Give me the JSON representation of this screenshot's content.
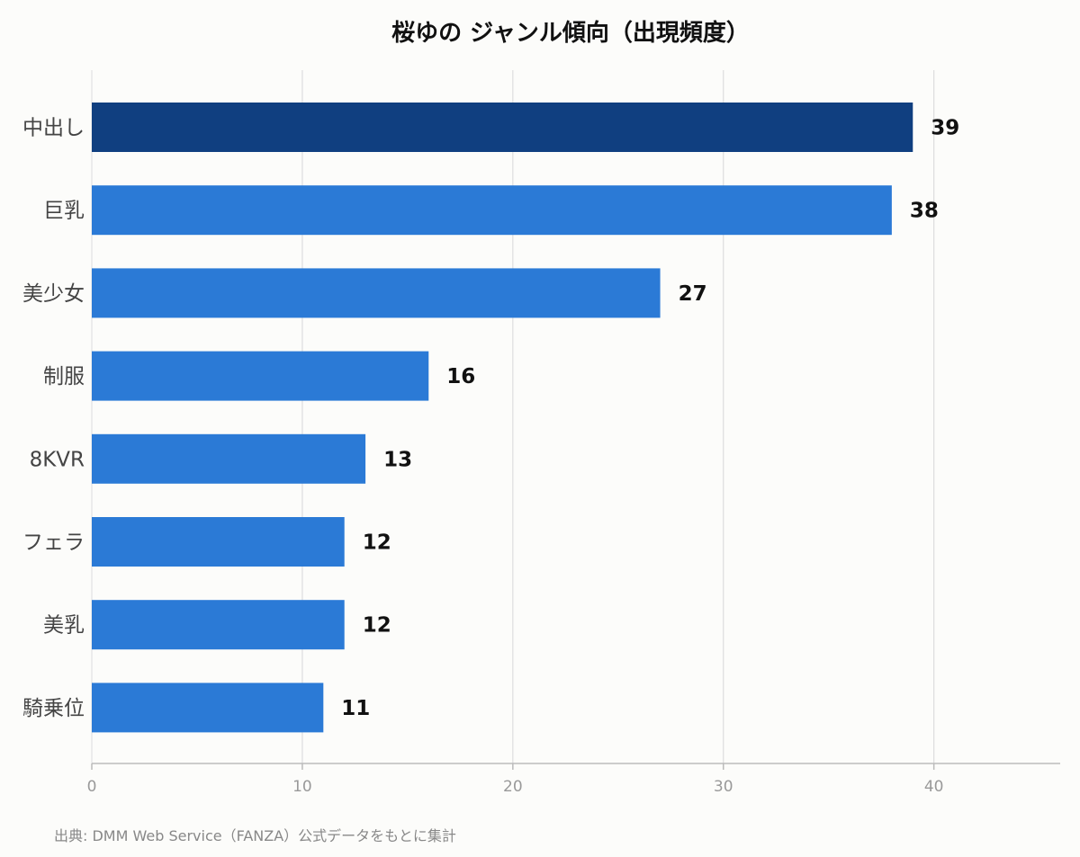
{
  "chart_data": {
    "type": "bar",
    "orientation": "horizontal",
    "title": "桜ゆの ジャンル傾向（出現頻度）",
    "categories": [
      "中出し",
      "巨乳",
      "美少女",
      "制服",
      "8KVR",
      "フェラ",
      "美乳",
      "騎乗位"
    ],
    "values": [
      39,
      38,
      27,
      16,
      13,
      12,
      12,
      11
    ],
    "xlim": [
      0,
      46
    ],
    "xticks": [
      0,
      10,
      20,
      30,
      40
    ],
    "grid": true,
    "legend": "none",
    "colors": {
      "highlight": "#103f80",
      "bar": "#2b7ad6"
    },
    "source": "出典: DMM Web Service（FANZA）公式データをもとに集計"
  }
}
